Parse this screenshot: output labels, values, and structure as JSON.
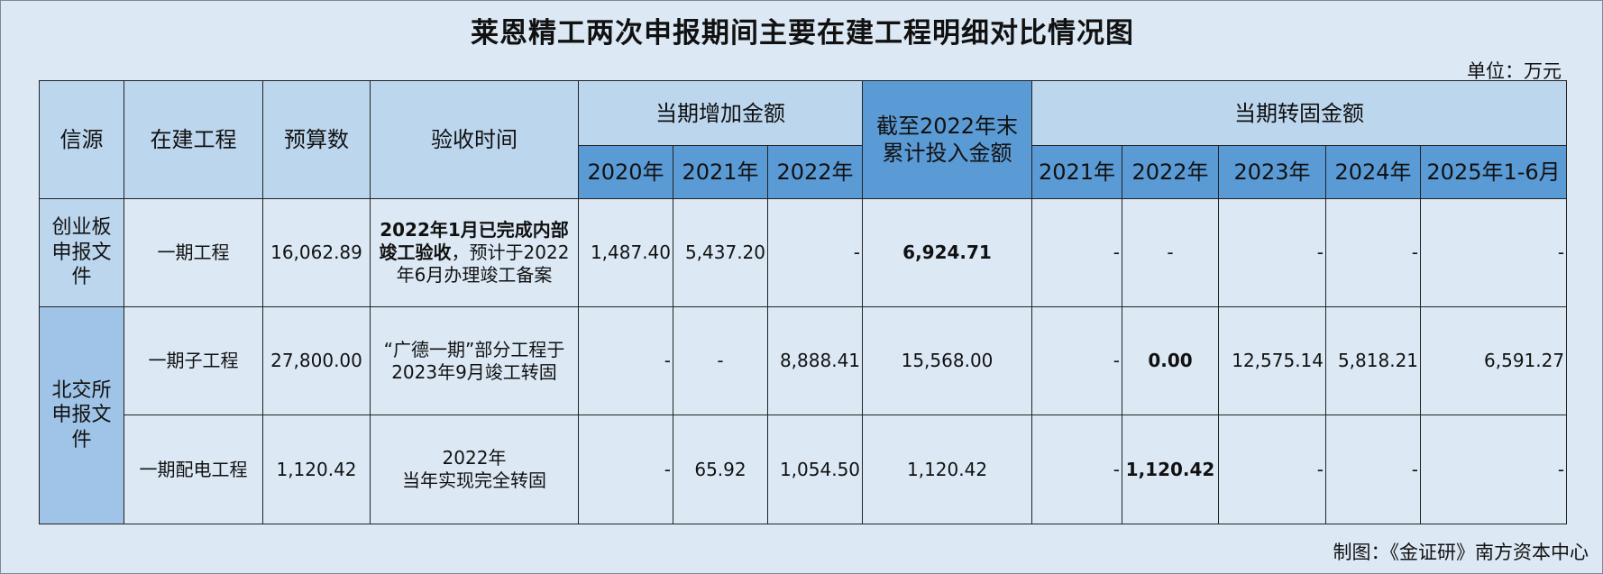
{
  "title": "莱恩精工两次申报期间主要在建工程明细对比情况图",
  "unit": "单位：万元",
  "headers": {
    "source": "信源",
    "project": "在建工程",
    "budget": "预算数",
    "acceptance": "验收时间",
    "period_add": "当期增加金额",
    "accumulated": "截至2022年末累计投入金额",
    "period_transfer": "当期转固金额",
    "add_years": [
      "2020年",
      "2021年",
      "2022年"
    ],
    "transfer_years": [
      "2021年",
      "2022年",
      "2023年",
      "2024年",
      "2025年1-6月"
    ]
  },
  "rows": [
    {
      "source": "创业板申报文件",
      "project": "一期工程",
      "budget": "16,062.89",
      "acceptance_bold": "2022年1月已完成内部竣工验收",
      "acceptance_rest": "，预计于2022年6月办理竣工备案",
      "add": [
        "1,487.40",
        "5,437.20",
        "-"
      ],
      "accumulated": "6,924.71",
      "transfer": [
        "-",
        "-",
        "-",
        "-",
        "-"
      ]
    },
    {
      "source": "北交所申报文件",
      "project": "一期子工程",
      "budget": "27,800.00",
      "acceptance": "“广德一期”部分工程于2023年9月竣工转固",
      "add": [
        "-",
        "-",
        "8,888.41"
      ],
      "accumulated": "15,568.00",
      "transfer": [
        "-",
        "0.00",
        "12,575.14",
        "5,818.21",
        "6,591.27"
      ]
    },
    {
      "project": "一期配电工程",
      "budget": "1,120.42",
      "acceptance_line1": "2022年",
      "acceptance_line2": "当年实现完全转固",
      "add": [
        "-",
        "65.92",
        "1,054.50"
      ],
      "accumulated": "1,120.42",
      "transfer": [
        "-",
        "1,120.42",
        "-",
        "-",
        "-"
      ]
    }
  ],
  "footer": "制图：《金证研》南方资本中心"
}
